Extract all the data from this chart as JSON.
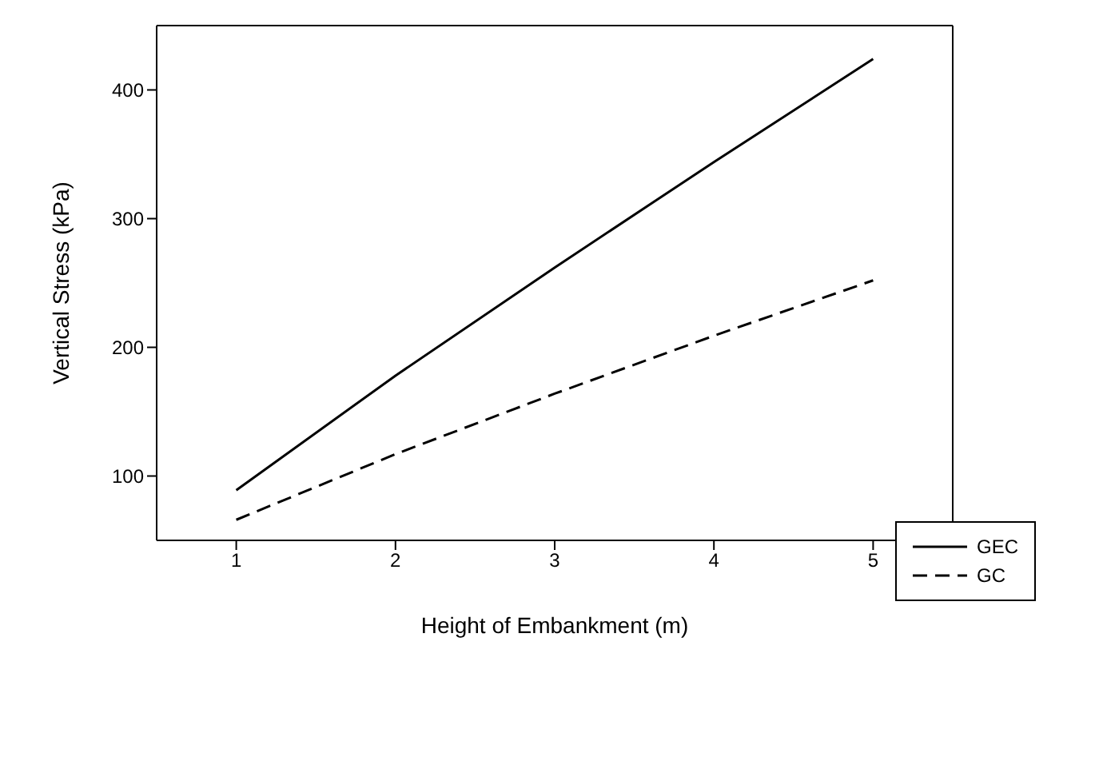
{
  "chart_data": {
    "type": "line",
    "xlabel": "Height of Embankment (m)",
    "ylabel": "Vertical Stress (kPa)",
    "x": [
      1,
      2,
      3,
      4,
      5
    ],
    "series": [
      {
        "name": "GEC",
        "color": "#000000",
        "line_style": "solid",
        "values": [
          89,
          178,
          262,
          344,
          424
        ]
      },
      {
        "name": "GC",
        "color": "#000000",
        "line_style": "dashed",
        "values": [
          66,
          117,
          164,
          209,
          252
        ]
      }
    ],
    "xlim": [
      0.5,
      5.5
    ],
    "xticks": [
      1,
      2,
      3,
      4,
      5
    ],
    "ylim": [
      50,
      450
    ],
    "yticks": [
      100,
      200,
      300,
      400
    ],
    "grid": false,
    "legend": "bottom right",
    "marker": "none"
  }
}
